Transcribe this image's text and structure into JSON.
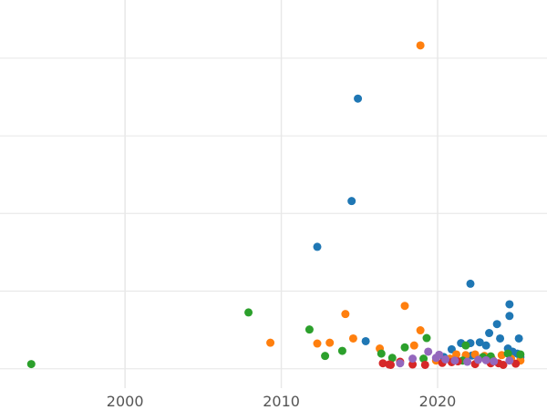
{
  "chart_data": {
    "type": "scatter",
    "title": "",
    "xlabel": "",
    "ylabel": "",
    "xlim": [
      1992,
      2027
    ],
    "ylim": [
      0,
      100
    ],
    "x_ticks": [
      2000,
      2010,
      2020
    ],
    "x_tick_labels": [
      "2000",
      "2010",
      "2020"
    ],
    "y_grid": [
      5,
      25,
      45,
      65,
      85
    ],
    "grid": true,
    "legend": "none",
    "series": [
      {
        "color": "#1f77b4",
        "x": [
          2014.9,
          2014.5,
          2012.3,
          2022.1,
          2024.6,
          2024.6,
          2023.8,
          2023.3,
          2024.0,
          2025.2,
          2015.4,
          2021.5,
          2022.1,
          2022.7,
          2023.1,
          2020.9,
          2024.5,
          2024.8,
          2025.1,
          2022.2,
          2020.4,
          2021.8,
          2025.3
        ],
        "y": [
          74.6,
          48.2,
          36.4,
          26.9,
          21.6,
          18.6,
          16.5,
          14.2,
          12.8,
          12.8,
          12.1,
          11.6,
          11.6,
          11.8,
          11.0,
          10.0,
          10.2,
          9.4,
          8.9,
          8.4,
          8.0,
          7.6,
          8.0
        ]
      },
      {
        "color": "#ff7f0e",
        "x": [
          2018.9,
          2017.9,
          2014.1,
          2018.9,
          2014.6,
          2009.3,
          2012.3,
          2013.1,
          2018.5,
          2016.3,
          2021.2,
          2021.8,
          2022.4,
          2023.0,
          2024.1,
          2024.7,
          2025.3,
          2020.8,
          2019.9,
          2023.5
        ],
        "y": [
          88.3,
          21.2,
          19.1,
          14.9,
          12.8,
          11.7,
          11.5,
          11.7,
          11.0,
          10.2,
          8.7,
          8.5,
          8.7,
          8.3,
          8.5,
          7.6,
          7.1,
          7.6,
          7.1,
          7.4
        ]
      },
      {
        "color": "#2ca02c",
        "x": [
          1994.0,
          2007.9,
          2011.8,
          2019.3,
          2021.8,
          2017.9,
          2013.9,
          2016.4,
          2012.8,
          2017.1,
          2019.1,
          2022.9,
          2023.4,
          2024.5,
          2025.3,
          2021.6
        ],
        "y": [
          6.2,
          19.5,
          15.1,
          12.9,
          11.0,
          10.5,
          9.6,
          8.9,
          8.3,
          7.8,
          7.6,
          8.0,
          8.2,
          8.9,
          8.7,
          7.1
        ]
      },
      {
        "color": "#d62728",
        "x": [
          2016.5,
          2017.0,
          2017.6,
          2018.4,
          2019.2,
          2020.3,
          2021.3,
          2022.4,
          2023.4,
          2024.2,
          2025.0,
          2016.9,
          2020.9,
          2023.9
        ],
        "y": [
          6.4,
          6.0,
          6.8,
          6.1,
          6.0,
          6.5,
          6.9,
          6.2,
          6.4,
          6.0,
          6.3,
          6.1,
          6.7,
          6.4
        ]
      },
      {
        "color": "#9467bd",
        "x": [
          2018.4,
          2019.4,
          2020.1,
          2020.5,
          2021.1,
          2021.9,
          2022.6,
          2023.6,
          2024.6,
          2017.6,
          2019.9,
          2023.1
        ],
        "y": [
          7.6,
          9.4,
          8.6,
          7.4,
          7.1,
          6.8,
          7.3,
          6.9,
          7.1,
          6.4,
          7.8,
          7.2
        ]
      }
    ]
  }
}
